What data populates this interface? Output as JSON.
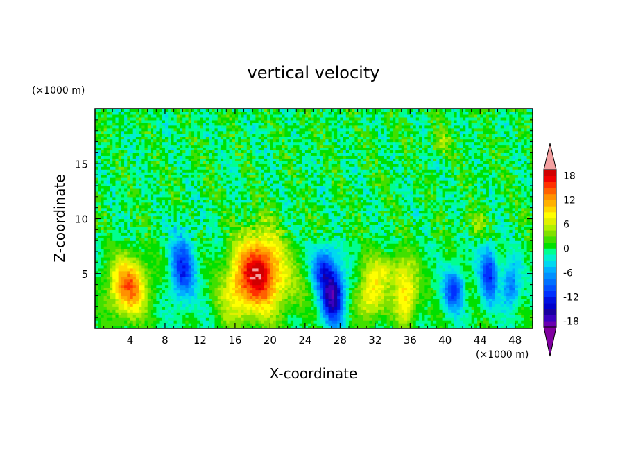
{
  "chart_data": {
    "type": "heatmap",
    "title": "vertical velocity",
    "xlabel": "X-coordinate",
    "ylabel": "Z-coordinate",
    "x_unit": "(×1000 m)",
    "z_unit": "(×1000 m)",
    "xlim": [
      0,
      50
    ],
    "zlim": [
      0,
      20
    ],
    "x_ticks": [
      4,
      8,
      12,
      16,
      20,
      24,
      28,
      32,
      36,
      40,
      44,
      48
    ],
    "z_ticks": [
      5,
      10,
      15
    ],
    "colorbar": {
      "levels": [
        -21,
        -19.5,
        -18,
        -16.5,
        -15,
        -13.5,
        -12,
        -10.5,
        -9,
        -7.5,
        -6,
        -4.5,
        -3,
        -1.5,
        0,
        1.5,
        3,
        4.5,
        6,
        7.5,
        9,
        10.5,
        12,
        13.5,
        15,
        16.5,
        18,
        19.5
      ],
      "tick_labels": [
        "18",
        "12",
        "6",
        "0",
        "-6",
        "-12",
        "-18"
      ],
      "tick_values": [
        18,
        12,
        6,
        0,
        -6,
        -12,
        -18
      ],
      "colors": [
        "#800080",
        "#6a00b0",
        "#3a00c0",
        "#1a00a0",
        "#0000cc",
        "#0010e0",
        "#0030ff",
        "#0050ff",
        "#0070ff",
        "#0090ff",
        "#00b0ff",
        "#00d8f0",
        "#00f0d0",
        "#00ff90",
        "#00e000",
        "#40e000",
        "#80e000",
        "#b0f000",
        "#e0f000",
        "#ffff00",
        "#ffd800",
        "#ffb000",
        "#ff9000",
        "#ff6000",
        "#ff3000",
        "#f00000",
        "#d00000",
        "#f4a0a0"
      ],
      "over_color": "#f4a0a0",
      "under_color": "#8000a0"
    },
    "features": [
      {
        "x": 3.8,
        "z": 3.8,
        "value": 14,
        "sx": 2.2,
        "sz": 2.6
      },
      {
        "x": 10.0,
        "z": 5.5,
        "value": -11,
        "sx": 1.4,
        "sz": 3.0
      },
      {
        "x": 18.8,
        "z": 5.2,
        "value": 18,
        "sx": 2.4,
        "sz": 3.5
      },
      {
        "x": 16.0,
        "z": 3.5,
        "value": 7,
        "sx": 1.8,
        "sz": 3.0
      },
      {
        "x": 27.2,
        "z": 3.0,
        "value": -17,
        "sx": 1.3,
        "sz": 2.6
      },
      {
        "x": 26.0,
        "z": 5.5,
        "value": -10,
        "sx": 1.2,
        "sz": 2.0
      },
      {
        "x": 31.5,
        "z": 3.0,
        "value": 9,
        "sx": 1.6,
        "sz": 2.2
      },
      {
        "x": 35.5,
        "z": 3.0,
        "value": 10,
        "sx": 1.3,
        "sz": 2.5
      },
      {
        "x": 33.5,
        "z": 5.5,
        "value": 5,
        "sx": 2.5,
        "sz": 1.5
      },
      {
        "x": 41.0,
        "z": 3.5,
        "value": -11,
        "sx": 1.1,
        "sz": 1.8
      },
      {
        "x": 45.0,
        "z": 5.0,
        "value": -11,
        "sx": 1.0,
        "sz": 2.5
      },
      {
        "x": 47.5,
        "z": 4.0,
        "value": -9,
        "sx": 1.0,
        "sz": 2.0
      },
      {
        "x": 22.0,
        "z": 4.0,
        "value": 3,
        "sx": 2.5,
        "sz": 3.0
      },
      {
        "x": 43.5,
        "z": 9.5,
        "value": 4,
        "sx": 1.2,
        "sz": 1.2
      },
      {
        "x": 39.5,
        "z": 17.0,
        "value": 4,
        "sx": 1.2,
        "sz": 1.2
      }
    ]
  }
}
